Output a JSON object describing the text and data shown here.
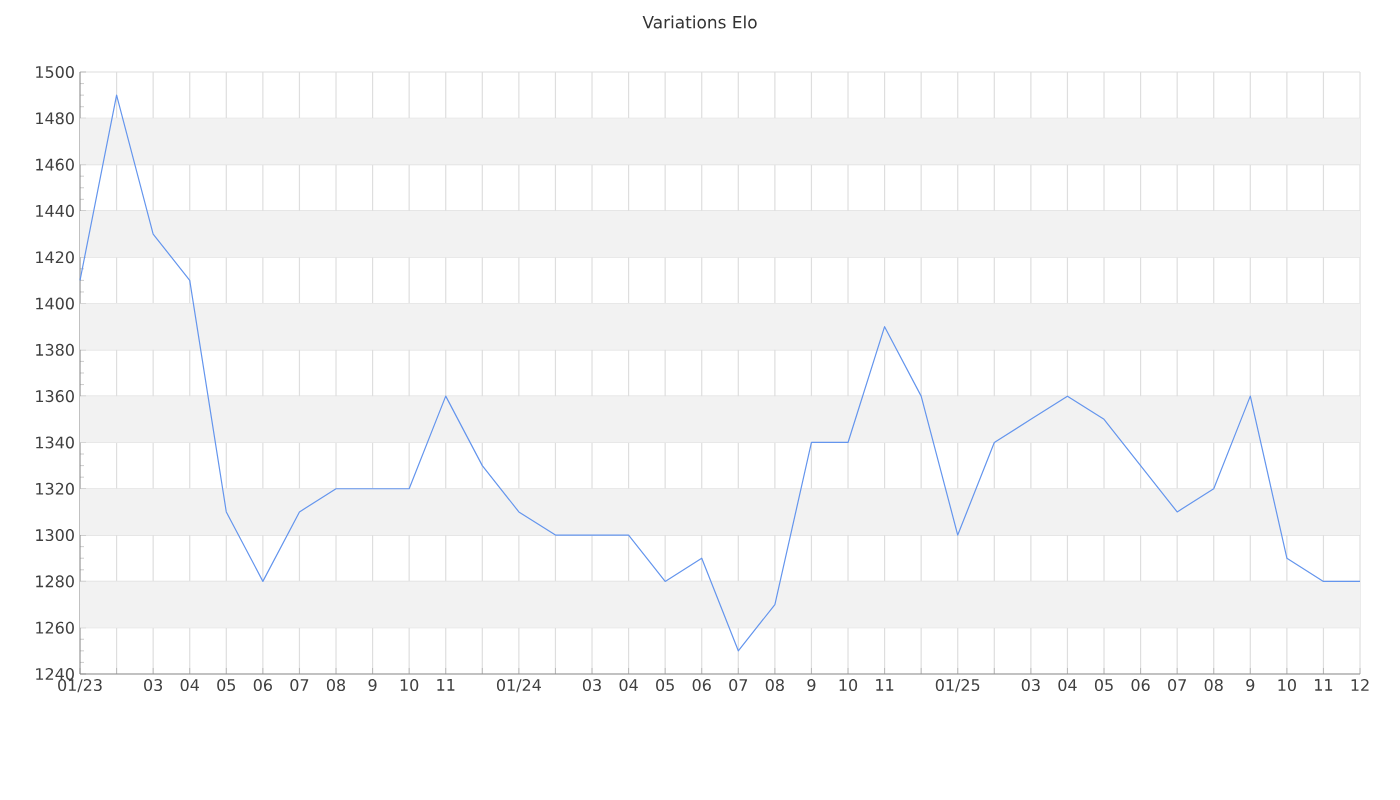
{
  "chart_data": {
    "type": "line",
    "title": "Variations Elo",
    "categories": [
      "01/23",
      null,
      "03",
      "04",
      "05",
      "06",
      "07",
      "08",
      "9",
      "10",
      "11",
      null,
      "01/24",
      null,
      "03",
      "04",
      "05",
      "06",
      "07",
      "08",
      "9",
      "10",
      "11",
      null,
      "01/25",
      null,
      "03",
      "04",
      "05",
      "06",
      "07",
      "08",
      "9",
      "10",
      "11",
      "12"
    ],
    "series": [
      {
        "color": "#6495ed",
        "values": [
          1410,
          1490,
          1430,
          1410,
          1310,
          1280,
          1310,
          1320,
          1320,
          1320,
          1360,
          1330,
          1310,
          1300,
          1300,
          1300,
          1280,
          1290,
          1250,
          1270,
          1340,
          1340,
          1390,
          1360,
          1300,
          1340,
          1350,
          1360,
          1350,
          1330,
          1310,
          1320,
          1360,
          1290,
          1280,
          1280
        ]
      }
    ],
    "ylim": [
      1240,
      1500
    ],
    "yticks": [
      1240,
      1260,
      1280,
      1300,
      1320,
      1340,
      1360,
      1380,
      1400,
      1420,
      1440,
      1460,
      1480,
      1500
    ],
    "grid": true,
    "marker": "none",
    "line_style": "solid"
  }
}
